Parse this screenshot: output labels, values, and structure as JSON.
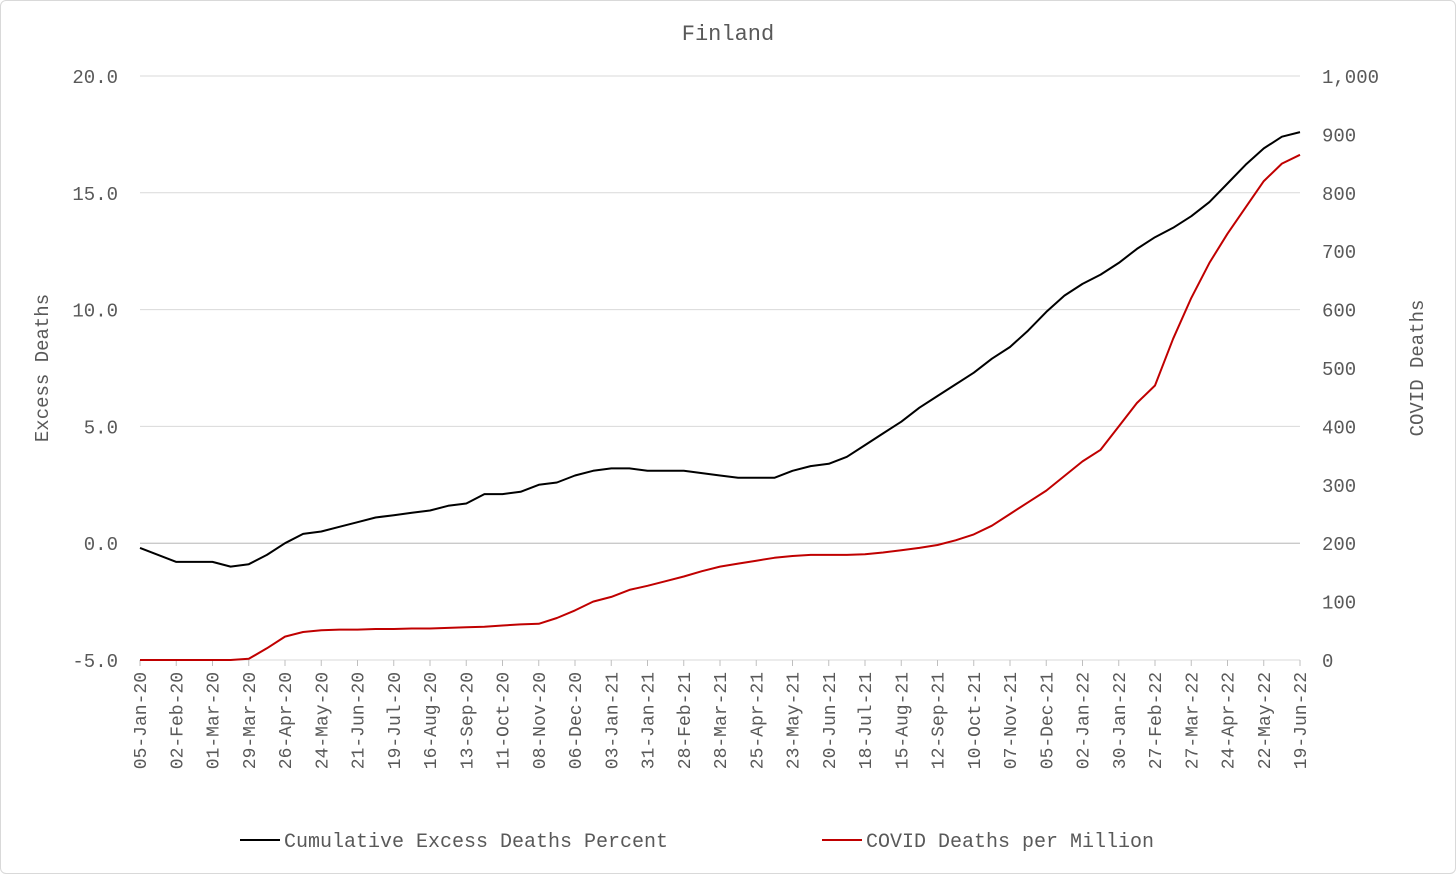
{
  "chart_data": {
    "type": "line",
    "title": "Finland",
    "ylabel_left": "Excess Deaths",
    "ylabel_right": "COVID Deaths",
    "ylim_left": [
      -5,
      20
    ],
    "ylim_right": [
      0,
      1000
    ],
    "yticks_left": [
      -5,
      0,
      5,
      10,
      15,
      20
    ],
    "yticks_left_labels": [
      "-5.0",
      "0.0",
      "5.0",
      "10.0",
      "15.0",
      "20.0"
    ],
    "yticks_right": [
      0,
      100,
      200,
      300,
      400,
      500,
      600,
      700,
      800,
      900,
      1000
    ],
    "yticks_right_labels": [
      "0",
      "100",
      "200",
      "300",
      "400",
      "500",
      "600",
      "700",
      "800",
      "900",
      "1,000"
    ],
    "grid": "horizontal",
    "legend_position": "bottom",
    "x_tick_labels": [
      "05-Jan-20",
      "02-Feb-20",
      "01-Mar-20",
      "29-Mar-20",
      "26-Apr-20",
      "24-May-20",
      "21-Jun-20",
      "19-Jul-20",
      "16-Aug-20",
      "13-Sep-20",
      "11-Oct-20",
      "08-Nov-20",
      "06-Dec-20",
      "03-Jan-21",
      "31-Jan-21",
      "28-Feb-21",
      "28-Mar-21",
      "25-Apr-21",
      "23-May-21",
      "20-Jun-21",
      "18-Jul-21",
      "15-Aug-21",
      "12-Sep-21",
      "10-Oct-21",
      "07-Nov-21",
      "05-Dec-21",
      "02-Jan-22",
      "30-Jan-22",
      "27-Feb-22",
      "27-Mar-22",
      "24-Apr-22",
      "22-May-22",
      "19-Jun-22"
    ],
    "series": [
      {
        "name": "Cumulative Excess Deaths Percent",
        "axis": "left",
        "color": "#000000",
        "x": [
          "05-Jan-20",
          "02-Feb-20",
          "01-Mar-20",
          "15-Mar-20",
          "29-Mar-20",
          "12-Apr-20",
          "26-Apr-20",
          "10-May-20",
          "24-May-20",
          "07-Jun-20",
          "21-Jun-20",
          "05-Jul-20",
          "19-Jul-20",
          "02-Aug-20",
          "16-Aug-20",
          "30-Aug-20",
          "13-Sep-20",
          "27-Sep-20",
          "11-Oct-20",
          "25-Oct-20",
          "08-Nov-20",
          "22-Nov-20",
          "06-Dec-20",
          "20-Dec-20",
          "03-Jan-21",
          "17-Jan-21",
          "31-Jan-21",
          "14-Feb-21",
          "28-Feb-21",
          "14-Mar-21",
          "28-Mar-21",
          "11-Apr-21",
          "25-Apr-21",
          "09-May-21",
          "23-May-21",
          "06-Jun-21",
          "20-Jun-21",
          "04-Jul-21",
          "18-Jul-21",
          "01-Aug-21",
          "15-Aug-21",
          "29-Aug-21",
          "12-Sep-21",
          "26-Sep-21",
          "10-Oct-21",
          "24-Oct-21",
          "07-Nov-21",
          "21-Nov-21",
          "05-Dec-21",
          "19-Dec-21",
          "02-Jan-22",
          "16-Jan-22",
          "30-Jan-22",
          "13-Feb-22",
          "27-Feb-22",
          "13-Mar-22",
          "27-Mar-22",
          "10-Apr-22",
          "24-Apr-22",
          "08-May-22",
          "22-May-22",
          "05-Jun-22",
          "19-Jun-22"
        ],
        "values": [
          -0.2,
          -0.8,
          -0.8,
          -1.0,
          -0.9,
          -0.5,
          0.0,
          0.4,
          0.5,
          0.7,
          0.9,
          1.1,
          1.2,
          1.3,
          1.4,
          1.6,
          1.7,
          2.1,
          2.1,
          2.2,
          2.5,
          2.6,
          2.9,
          3.1,
          3.2,
          3.2,
          3.1,
          3.1,
          3.1,
          3.0,
          2.9,
          2.8,
          2.8,
          2.8,
          3.1,
          3.3,
          3.4,
          3.7,
          4.2,
          4.7,
          5.2,
          5.8,
          6.3,
          6.8,
          7.3,
          7.9,
          8.4,
          9.1,
          9.9,
          10.6,
          11.1,
          11.5,
          12.0,
          12.6,
          13.1,
          13.5,
          14.0,
          14.6,
          15.4,
          16.2,
          16.9,
          17.4,
          17.6
        ]
      },
      {
        "name": "COVID Deaths per Million",
        "axis": "right",
        "color": "#c00000",
        "x": [
          "05-Jan-20",
          "02-Feb-20",
          "01-Mar-20",
          "15-Mar-20",
          "29-Mar-20",
          "12-Apr-20",
          "26-Apr-20",
          "10-May-20",
          "24-May-20",
          "07-Jun-20",
          "21-Jun-20",
          "05-Jul-20",
          "19-Jul-20",
          "02-Aug-20",
          "16-Aug-20",
          "30-Aug-20",
          "13-Sep-20",
          "27-Sep-20",
          "11-Oct-20",
          "25-Oct-20",
          "08-Nov-20",
          "22-Nov-20",
          "06-Dec-20",
          "20-Dec-20",
          "03-Jan-21",
          "17-Jan-21",
          "31-Jan-21",
          "14-Feb-21",
          "28-Feb-21",
          "14-Mar-21",
          "28-Mar-21",
          "11-Apr-21",
          "25-Apr-21",
          "09-May-21",
          "23-May-21",
          "06-Jun-21",
          "20-Jun-21",
          "04-Jul-21",
          "18-Jul-21",
          "01-Aug-21",
          "15-Aug-21",
          "29-Aug-21",
          "12-Sep-21",
          "26-Sep-21",
          "10-Oct-21",
          "24-Oct-21",
          "07-Nov-21",
          "21-Nov-21",
          "05-Dec-21",
          "19-Dec-21",
          "02-Jan-22",
          "16-Jan-22",
          "30-Jan-22",
          "13-Feb-22",
          "27-Feb-22",
          "13-Mar-22",
          "27-Mar-22",
          "10-Apr-22",
          "24-Apr-22",
          "08-May-22",
          "22-May-22",
          "05-Jun-22",
          "19-Jun-22"
        ],
        "values": [
          0,
          0,
          0,
          0,
          2,
          20,
          40,
          48,
          51,
          52,
          52,
          53,
          53,
          54,
          54,
          55,
          56,
          57,
          59,
          61,
          62,
          72,
          85,
          100,
          108,
          120,
          127,
          135,
          143,
          152,
          160,
          165,
          170,
          175,
          178,
          180,
          180,
          180,
          181,
          184,
          188,
          192,
          197,
          205,
          215,
          230,
          250,
          270,
          290,
          315,
          340,
          360,
          400,
          440,
          470,
          550,
          620,
          680,
          730,
          775,
          820,
          850,
          865
        ]
      }
    ]
  }
}
